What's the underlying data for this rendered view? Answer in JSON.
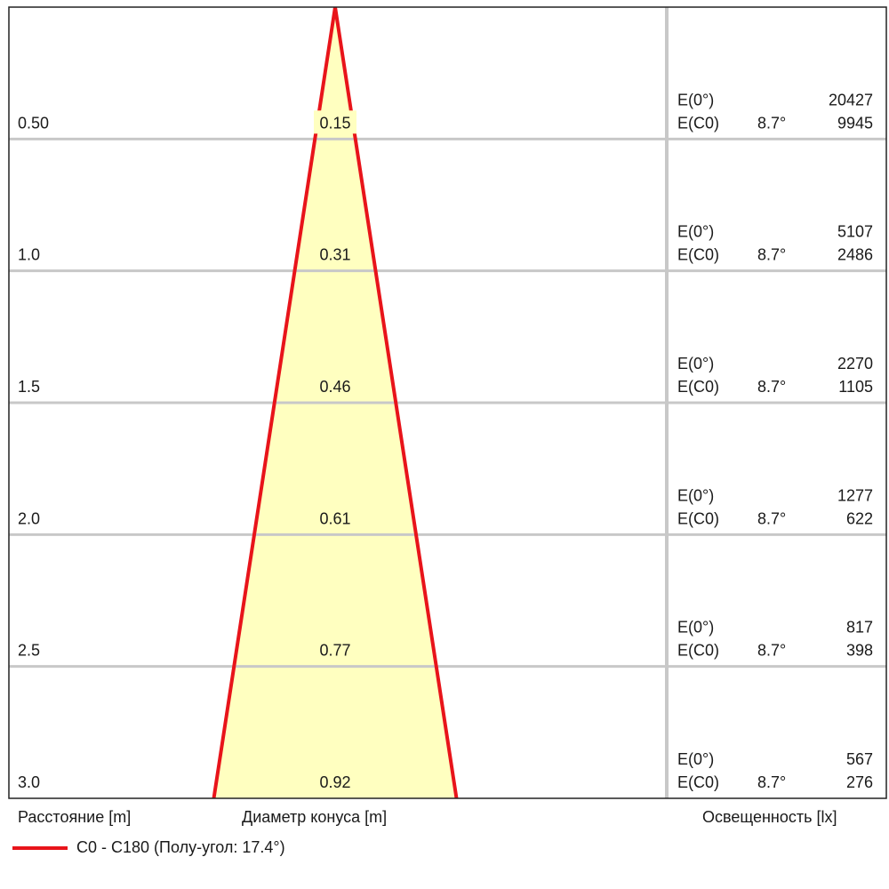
{
  "colors": {
    "cone_fill": "#ffffc0",
    "cone_edge": "#e8141a",
    "grid": "#c8c8c8",
    "border": "#222222"
  },
  "rows": [
    {
      "distance": "0.50",
      "diameter": "0.15",
      "e0_label": "E(0°)",
      "e0_value": "20427",
      "ec0_label": "E(C0)",
      "angle": "8.7°",
      "ec0_value": "9945"
    },
    {
      "distance": "1.0",
      "diameter": "0.31",
      "e0_label": "E(0°)",
      "e0_value": "5107",
      "ec0_label": "E(C0)",
      "angle": "8.7°",
      "ec0_value": "2486"
    },
    {
      "distance": "1.5",
      "diameter": "0.46",
      "e0_label": "E(0°)",
      "e0_value": "2270",
      "ec0_label": "E(C0)",
      "angle": "8.7°",
      "ec0_value": "1105"
    },
    {
      "distance": "2.0",
      "diameter": "0.61",
      "e0_label": "E(0°)",
      "e0_value": "1277",
      "ec0_label": "E(C0)",
      "angle": "8.7°",
      "ec0_value": "622"
    },
    {
      "distance": "2.5",
      "diameter": "0.77",
      "e0_label": "E(0°)",
      "e0_value": "817",
      "ec0_label": "E(C0)",
      "angle": "8.7°",
      "ec0_value": "398"
    },
    {
      "distance": "3.0",
      "diameter": "0.92",
      "e0_label": "E(0°)",
      "e0_value": "567",
      "ec0_label": "E(C0)",
      "angle": "8.7°",
      "ec0_value": "276"
    }
  ],
  "footer": {
    "distance_label": "Расстояние [m]",
    "diameter_label": "Диаметр конуса [m]",
    "illuminance_label": "Освещенность [lx]"
  },
  "legend": {
    "label": "C0 - C180 (Полу-угол: 17.4°)"
  }
}
